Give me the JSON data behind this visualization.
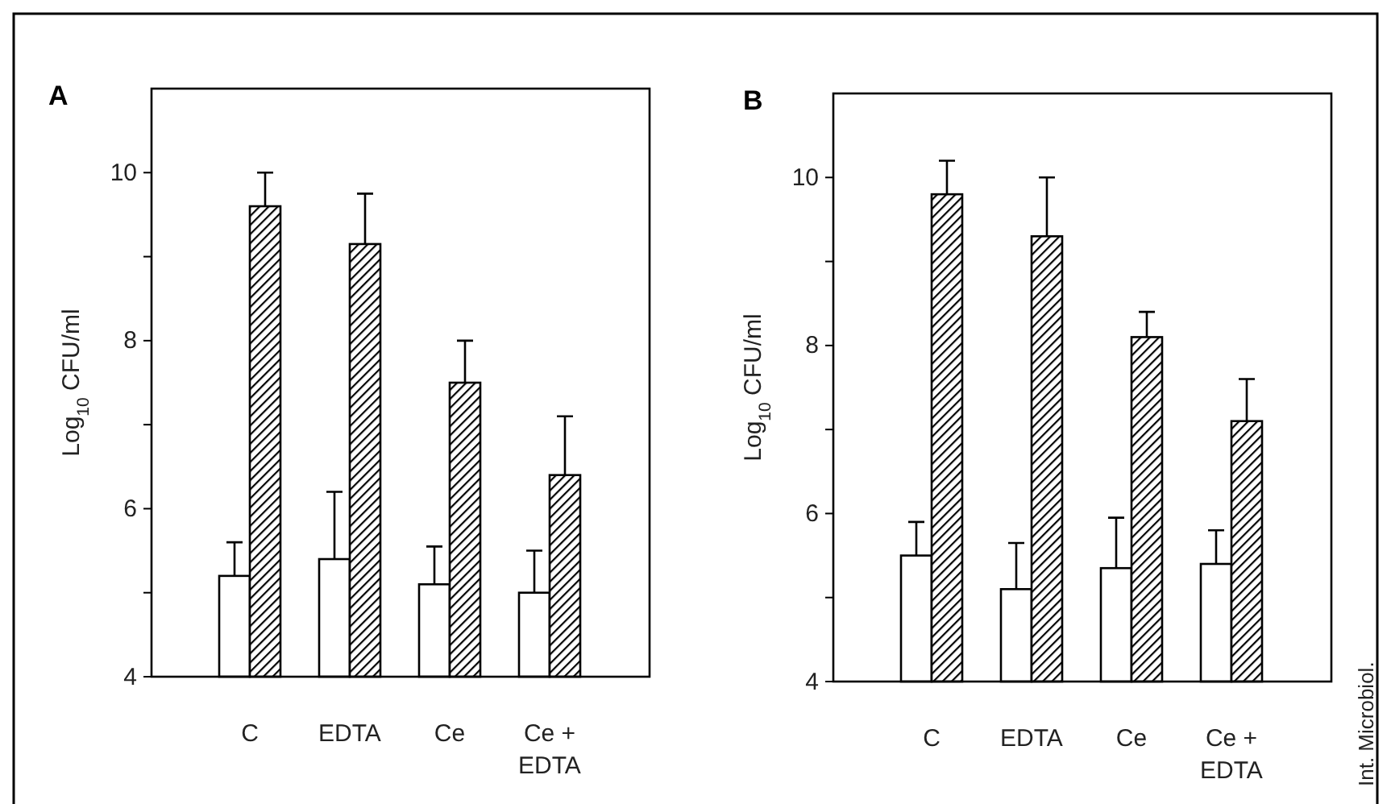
{
  "chart_data": [
    {
      "type": "bar",
      "title": "A",
      "ylabel": "Log$_{10}$ CFU/ml",
      "categories": [
        "C",
        "EDTA",
        "Ce",
        "Ce + EDTA"
      ],
      "ylim": [
        4,
        11
      ],
      "yticks": [
        4,
        {
          "value": 5,
          "label": null
        },
        6,
        {
          "value": 7,
          "label": null
        },
        8,
        {
          "value": 9,
          "label": null
        },
        10
      ],
      "series": [
        {
          "color": "#ffffff",
          "values": [
            5.2,
            5.4,
            5.1,
            5.0
          ],
          "errors": [
            [
              5.2,
              5.6
            ],
            [
              5.4,
              6.2
            ],
            [
              5.1,
              5.55
            ],
            [
              5.0,
              5.5
            ]
          ]
        },
        {
          "color": "#000000",
          "values": [
            9.6,
            9.15,
            7.5,
            6.4
          ],
          "errors": [
            [
              9.6,
              10.0
            ],
            [
              9.15,
              9.75
            ],
            [
              7.5,
              8.0
            ],
            [
              6.4,
              7.1
            ]
          ]
        }
      ]
    },
    {
      "type": "bar",
      "title": "B",
      "ylabel": "Log$_{10}$ CFU/ml",
      "categories": [
        "C",
        "EDTA",
        "Ce",
        "Ce + EDTA"
      ],
      "ylim": [
        4,
        11
      ],
      "yticks": [
        4,
        {
          "value": 5,
          "label": null
        },
        6,
        {
          "value": 7,
          "label": null
        },
        8,
        {
          "value": 9,
          "label": null
        },
        10
      ],
      "annotations": [
        "Int. Microbiol."
      ],
      "series": [
        {
          "color": "#ffffff",
          "values": [
            5.5,
            5.1,
            5.35,
            5.4
          ],
          "errors": [
            [
              5.5,
              5.9
            ],
            [
              5.1,
              5.65
            ],
            [
              5.35,
              5.95
            ],
            [
              5.4,
              5.8
            ]
          ]
        },
        {
          "color": "#000000",
          "values": [
            9.8,
            9.3,
            8.1,
            7.1
          ],
          "errors": [
            [
              9.8,
              10.2
            ],
            [
              9.3,
              10.0
            ],
            [
              8.1,
              8.4
            ],
            [
              7.1,
              7.6
            ]
          ]
        }
      ]
    }
  ]
}
